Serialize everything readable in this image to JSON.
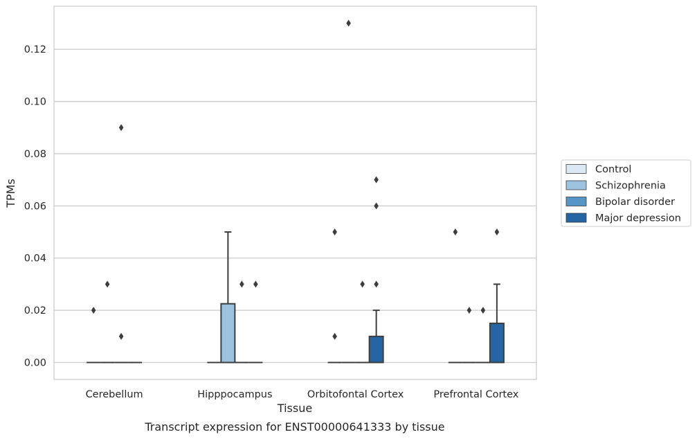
{
  "chart_data": {
    "type": "box",
    "title": "",
    "caption": "Transcript expression for ENST00000641333 by tissue",
    "xlabel": "Tissue",
    "ylabel": "TPMs",
    "ylim": [
      -0.0065,
      0.1365
    ],
    "yticks": [
      0.0,
      0.02,
      0.04,
      0.06,
      0.08,
      0.1,
      0.12
    ],
    "ytick_labels": [
      "0.00",
      "0.02",
      "0.04",
      "0.06",
      "0.08",
      "0.10",
      "0.12"
    ],
    "grid": "horizontal",
    "legend_position": "right",
    "categories": [
      "Cerebellum",
      "Hipppocampus",
      "Orbitofontal Cortex",
      "Prefrontal Cortex"
    ],
    "series": [
      {
        "name": "Control",
        "color": "#dbe9f6",
        "boxes": [
          {
            "q1": 0,
            "median": 0,
            "q3": 0,
            "whisker_low": 0,
            "whisker_high": 0,
            "outliers": [
              0.02
            ]
          },
          {
            "q1": 0,
            "median": 0,
            "q3": 0,
            "whisker_low": 0,
            "whisker_high": 0,
            "outliers": []
          },
          {
            "q1": 0,
            "median": 0,
            "q3": 0,
            "whisker_low": 0,
            "whisker_high": 0,
            "outliers": [
              0.05,
              0.01
            ]
          },
          {
            "q1": 0,
            "median": 0,
            "q3": 0,
            "whisker_low": 0,
            "whisker_high": 0,
            "outliers": [
              0.05
            ]
          }
        ]
      },
      {
        "name": "Schizophrenia",
        "color": "#9dc2dd",
        "boxes": [
          {
            "q1": 0,
            "median": 0,
            "q3": 0,
            "whisker_low": 0,
            "whisker_high": 0,
            "outliers": [
              0.03
            ]
          },
          {
            "q1": 0,
            "median": 0,
            "q3": 0.0225,
            "whisker_low": 0,
            "whisker_high": 0.05,
            "outliers": []
          },
          {
            "q1": 0,
            "median": 0,
            "q3": 0,
            "whisker_low": 0,
            "whisker_high": 0,
            "outliers": [
              0.13
            ]
          },
          {
            "q1": 0,
            "median": 0,
            "q3": 0,
            "whisker_low": 0,
            "whisker_high": 0,
            "outliers": [
              0.02
            ]
          }
        ]
      },
      {
        "name": "Bipolar disorder",
        "color": "#5596c6",
        "boxes": [
          {
            "q1": 0,
            "median": 0,
            "q3": 0,
            "whisker_low": 0,
            "whisker_high": 0,
            "outliers": [
              0.09,
              0.01
            ]
          },
          {
            "q1": 0,
            "median": 0,
            "q3": 0,
            "whisker_low": 0,
            "whisker_high": 0,
            "outliers": [
              0.03
            ]
          },
          {
            "q1": 0,
            "median": 0,
            "q3": 0,
            "whisker_low": 0,
            "whisker_high": 0,
            "outliers": [
              0.03
            ]
          },
          {
            "q1": 0,
            "median": 0,
            "q3": 0,
            "whisker_low": 0,
            "whisker_high": 0,
            "outliers": [
              0.02
            ]
          }
        ]
      },
      {
        "name": "Major depression",
        "color": "#2565a3",
        "boxes": [
          {
            "q1": 0,
            "median": 0,
            "q3": 0,
            "whisker_low": 0,
            "whisker_high": 0,
            "outliers": []
          },
          {
            "q1": 0,
            "median": 0,
            "q3": 0,
            "whisker_low": 0,
            "whisker_high": 0,
            "outliers": [
              0.03
            ]
          },
          {
            "q1": 0,
            "median": 0,
            "q3": 0.01,
            "whisker_low": 0,
            "whisker_high": 0.02,
            "outliers": [
              0.07,
              0.06,
              0.03
            ]
          },
          {
            "q1": 0,
            "median": 0,
            "q3": 0.015,
            "whisker_low": 0,
            "whisker_high": 0.03,
            "outliers": [
              0.05
            ]
          }
        ]
      }
    ]
  },
  "style": {
    "edge_color": "#3d3d3d",
    "grid_color": "#cccccc",
    "frame_color": "#cccccc",
    "text_color": "#262626"
  }
}
